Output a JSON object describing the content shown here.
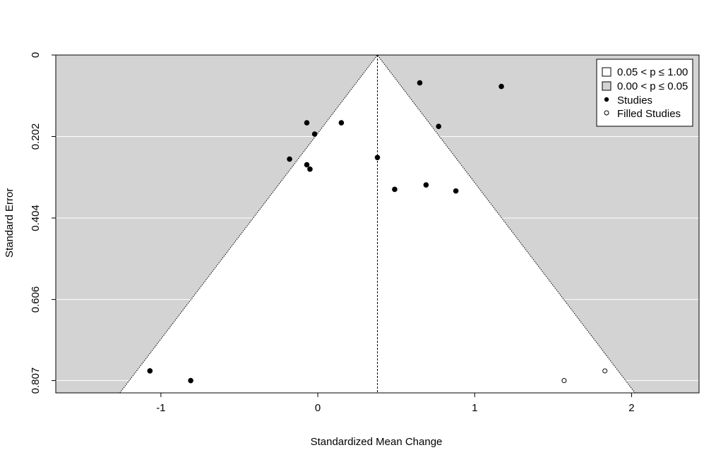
{
  "chart_data": {
    "type": "scatter",
    "title": "",
    "xlabel": "Standardized Mean Change",
    "ylabel": "Standard Error",
    "xlim": [
      -1.67,
      2.43
    ],
    "ylim": [
      0,
      0.8375
    ],
    "y_reversed": true,
    "x_ticks": [
      {
        "value": -1,
        "label": "-1"
      },
      {
        "value": 0,
        "label": "0"
      },
      {
        "value": 1,
        "label": "1"
      },
      {
        "value": 2,
        "label": "2"
      }
    ],
    "y_ticks": [
      {
        "value": 0,
        "label": "0"
      },
      {
        "value": 0.202,
        "label": "0.202"
      },
      {
        "value": 0.404,
        "label": "0.404"
      },
      {
        "value": 0.606,
        "label": "0.606"
      },
      {
        "value": 0.807,
        "label": "0.807"
      }
    ],
    "grid": "horizontal",
    "center_estimate": 0.38,
    "funnel_region_label": "0.05 < p ≤ 1.00",
    "shaded_region_label": "0.00 < p ≤ 0.05",
    "legend_position": "top-right",
    "legend": [
      {
        "label": "0.05 < p ≤ 1.00",
        "symbol": "open-square"
      },
      {
        "label": "0.00 < p ≤ 0.05",
        "symbol": "grey-square"
      },
      {
        "label": "Studies",
        "symbol": "filled-circle"
      },
      {
        "label": "Filled Studies",
        "symbol": "open-circle"
      }
    ],
    "colors": {
      "shaded": "#d3d3d3",
      "funnel": "#ffffff",
      "grid": "#ffffff",
      "points": "#000000"
    },
    "series": [
      {
        "name": "Studies",
        "marker": "filled-circle",
        "points": [
          {
            "x": 0.65,
            "y": 0.069
          },
          {
            "x": 1.17,
            "y": 0.078
          },
          {
            "x": -0.07,
            "y": 0.168
          },
          {
            "x": 0.15,
            "y": 0.168
          },
          {
            "x": 0.77,
            "y": 0.177
          },
          {
            "x": -0.02,
            "y": 0.196
          },
          {
            "x": -0.18,
            "y": 0.258
          },
          {
            "x": 0.38,
            "y": 0.254
          },
          {
            "x": -0.07,
            "y": 0.272
          },
          {
            "x": -0.05,
            "y": 0.283
          },
          {
            "x": 0.69,
            "y": 0.322
          },
          {
            "x": 0.49,
            "y": 0.333
          },
          {
            "x": 0.88,
            "y": 0.337
          },
          {
            "x": -1.07,
            "y": 0.783
          },
          {
            "x": -0.81,
            "y": 0.807
          }
        ]
      },
      {
        "name": "Filled Studies",
        "marker": "open-circle",
        "points": [
          {
            "x": 1.57,
            "y": 0.807
          },
          {
            "x": 1.83,
            "y": 0.783
          }
        ]
      }
    ]
  }
}
